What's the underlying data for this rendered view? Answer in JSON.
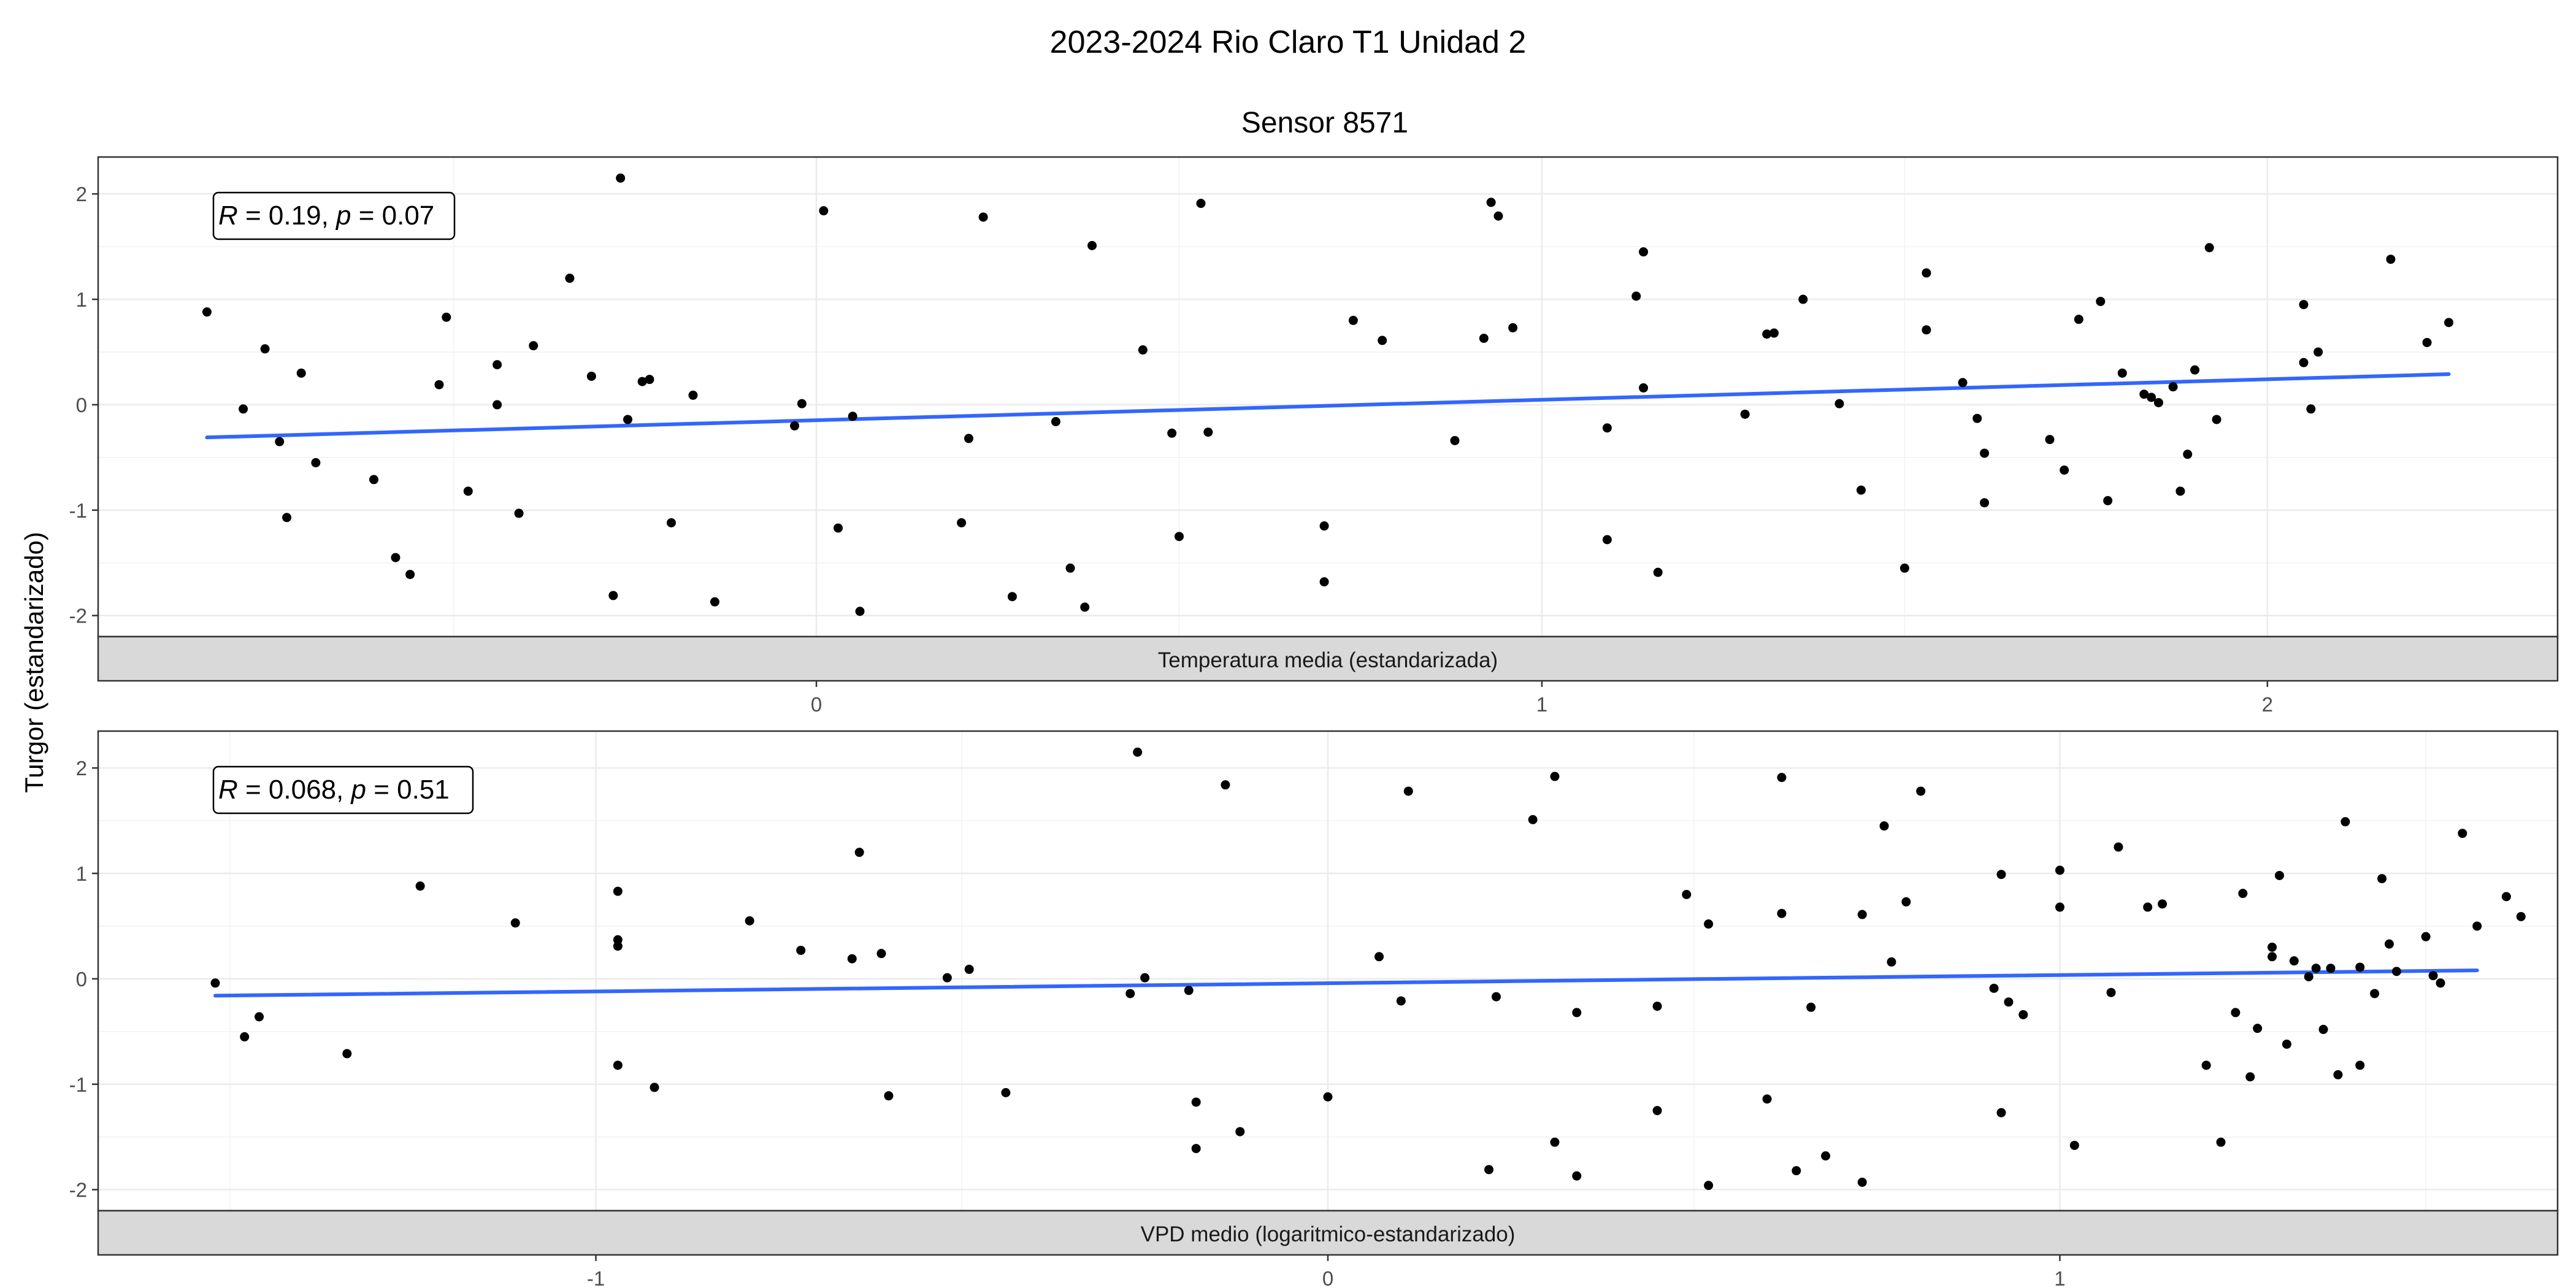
{
  "figure": {
    "title": "2023-2024 Rio Claro T1 Unidad 2",
    "subtitle": "Sensor 8571",
    "ylabel": "Turgor (estandarizado)"
  },
  "chart_data": [
    {
      "type": "scatter",
      "xlabel": "Temperatura media (estandarizada)",
      "ylabel": "Turgor (estandarizado)",
      "xlim": [
        -0.99,
        2.4
      ],
      "ylim": [
        -2.2,
        2.35
      ],
      "xticks": [
        {
          "value": 0,
          "label": "0"
        },
        {
          "value": 1,
          "label": "1"
        },
        {
          "value": 2,
          "label": "2"
        }
      ],
      "yticks": [
        {
          "value": -2,
          "label": "-2"
        },
        {
          "value": -1,
          "label": "-1"
        },
        {
          "value": 0,
          "label": "0"
        },
        {
          "value": 1,
          "label": "1"
        },
        {
          "value": 2,
          "label": "2"
        }
      ],
      "grid": true,
      "annotation": {
        "r_label": "R",
        "r_value": " = 0.19, ",
        "p_label": "p",
        "p_value": " = 0.07"
      },
      "trend_line": {
        "x": [
          -0.84,
          2.25
        ],
        "y": [
          -0.31,
          0.29
        ],
        "color": "#3366FF"
      },
      "point_color": "#000000",
      "points": [
        {
          "x": -0.84,
          "y": 0.88
        },
        {
          "x": -0.79,
          "y": -0.04
        },
        {
          "x": -0.76,
          "y": 0.53
        },
        {
          "x": -0.74,
          "y": -0.35
        },
        {
          "x": -0.73,
          "y": -1.07
        },
        {
          "x": -0.71,
          "y": 0.3
        },
        {
          "x": -0.69,
          "y": -0.55
        },
        {
          "x": -0.61,
          "y": -0.71
        },
        {
          "x": -0.58,
          "y": -1.45
        },
        {
          "x": -0.56,
          "y": -1.61
        },
        {
          "x": -0.52,
          "y": 0.19
        },
        {
          "x": -0.51,
          "y": 0.83
        },
        {
          "x": -0.48,
          "y": -0.82
        },
        {
          "x": -0.44,
          "y": 0.38
        },
        {
          "x": -0.44,
          "y": 0.0
        },
        {
          "x": -0.41,
          "y": -1.03
        },
        {
          "x": -0.39,
          "y": 0.56
        },
        {
          "x": -0.34,
          "y": 1.2
        },
        {
          "x": -0.31,
          "y": 0.27
        },
        {
          "x": -0.28,
          "y": -1.81
        },
        {
          "x": -0.27,
          "y": 2.15
        },
        {
          "x": -0.26,
          "y": -0.14
        },
        {
          "x": -0.24,
          "y": 0.22
        },
        {
          "x": -0.23,
          "y": 0.24
        },
        {
          "x": -0.2,
          "y": -1.12
        },
        {
          "x": -0.17,
          "y": 0.09
        },
        {
          "x": -0.14,
          "y": -1.87
        },
        {
          "x": -0.03,
          "y": -0.2
        },
        {
          "x": -0.02,
          "y": 0.01
        },
        {
          "x": 0.01,
          "y": 1.84
        },
        {
          "x": 0.03,
          "y": -1.17
        },
        {
          "x": 0.05,
          "y": -0.11
        },
        {
          "x": 0.06,
          "y": -1.96
        },
        {
          "x": 0.2,
          "y": -1.12
        },
        {
          "x": 0.21,
          "y": -0.32
        },
        {
          "x": 0.23,
          "y": 1.78
        },
        {
          "x": 0.27,
          "y": -1.82
        },
        {
          "x": 0.33,
          "y": -0.16
        },
        {
          "x": 0.35,
          "y": -1.55
        },
        {
          "x": 0.37,
          "y": -1.92
        },
        {
          "x": 0.38,
          "y": 1.51
        },
        {
          "x": 0.45,
          "y": 0.52
        },
        {
          "x": 0.49,
          "y": -0.27
        },
        {
          "x": 0.5,
          "y": -1.25
        },
        {
          "x": 0.53,
          "y": 1.91
        },
        {
          "x": 0.54,
          "y": -0.26
        },
        {
          "x": 0.7,
          "y": -1.15
        },
        {
          "x": 0.7,
          "y": -1.68
        },
        {
          "x": 0.74,
          "y": 0.8
        },
        {
          "x": 0.78,
          "y": 0.61
        },
        {
          "x": 0.88,
          "y": -0.34
        },
        {
          "x": 0.92,
          "y": 0.63
        },
        {
          "x": 0.93,
          "y": 1.92
        },
        {
          "x": 0.94,
          "y": 1.79
        },
        {
          "x": 0.96,
          "y": 0.73
        },
        {
          "x": 1.09,
          "y": -1.28
        },
        {
          "x": 1.09,
          "y": -0.22
        },
        {
          "x": 1.13,
          "y": 1.03
        },
        {
          "x": 1.14,
          "y": 1.45
        },
        {
          "x": 1.14,
          "y": 0.16
        },
        {
          "x": 1.16,
          "y": -1.59
        },
        {
          "x": 1.28,
          "y": -0.09
        },
        {
          "x": 1.31,
          "y": 0.67
        },
        {
          "x": 1.32,
          "y": 0.68
        },
        {
          "x": 1.36,
          "y": 1.0
        },
        {
          "x": 1.41,
          "y": 0.01
        },
        {
          "x": 1.44,
          "y": -0.81
        },
        {
          "x": 1.5,
          "y": -1.55
        },
        {
          "x": 1.53,
          "y": 1.25
        },
        {
          "x": 1.53,
          "y": 0.71
        },
        {
          "x": 1.58,
          "y": 0.21
        },
        {
          "x": 1.6,
          "y": -0.13
        },
        {
          "x": 1.61,
          "y": -0.46
        },
        {
          "x": 1.61,
          "y": -0.93
        },
        {
          "x": 1.7,
          "y": -0.33
        },
        {
          "x": 1.72,
          "y": -0.62
        },
        {
          "x": 1.74,
          "y": 0.81
        },
        {
          "x": 1.77,
          "y": 0.98
        },
        {
          "x": 1.78,
          "y": -0.91
        },
        {
          "x": 1.8,
          "y": 0.3
        },
        {
          "x": 1.83,
          "y": 0.1
        },
        {
          "x": 1.84,
          "y": 0.07
        },
        {
          "x": 1.85,
          "y": 0.02
        },
        {
          "x": 1.87,
          "y": 0.17
        },
        {
          "x": 1.88,
          "y": -0.82
        },
        {
          "x": 1.89,
          "y": -0.47
        },
        {
          "x": 1.9,
          "y": 0.33
        },
        {
          "x": 1.92,
          "y": 1.49
        },
        {
          "x": 1.93,
          "y": -0.14
        },
        {
          "x": 2.05,
          "y": 0.95
        },
        {
          "x": 2.05,
          "y": 0.4
        },
        {
          "x": 2.06,
          "y": -0.04
        },
        {
          "x": 2.07,
          "y": 0.5
        },
        {
          "x": 2.17,
          "y": 1.38
        },
        {
          "x": 2.22,
          "y": 0.59
        },
        {
          "x": 2.25,
          "y": 0.78
        }
      ]
    },
    {
      "type": "scatter",
      "xlabel": "VPD medio (logaritmico-estandarizado)",
      "ylabel": "Turgor (estandarizado)",
      "xlim": [
        -1.68,
        1.68
      ],
      "ylim": [
        -2.2,
        2.35
      ],
      "xticks": [
        {
          "value": -1,
          "label": "-1"
        },
        {
          "value": 0,
          "label": "0"
        },
        {
          "value": 1,
          "label": "1"
        }
      ],
      "yticks": [
        {
          "value": -2,
          "label": "-2"
        },
        {
          "value": -1,
          "label": "-1"
        },
        {
          "value": 0,
          "label": "0"
        },
        {
          "value": 1,
          "label": "1"
        },
        {
          "value": 2,
          "label": "2"
        }
      ],
      "grid": true,
      "annotation": {
        "r_label": "R",
        "r_value": " = 0.068, ",
        "p_label": "p",
        "p_value": " = 0.51"
      },
      "trend_line": {
        "x": [
          -1.52,
          1.57
        ],
        "y": [
          -0.16,
          0.08
        ],
        "color": "#3366FF"
      },
      "point_color": "#000000",
      "points": [
        {
          "x": -1.52,
          "y": -0.04
        },
        {
          "x": -1.48,
          "y": -0.55
        },
        {
          "x": -1.46,
          "y": -0.36
        },
        {
          "x": -1.34,
          "y": -0.71
        },
        {
          "x": -1.24,
          "y": 0.88
        },
        {
          "x": -1.11,
          "y": 0.53
        },
        {
          "x": -0.97,
          "y": 0.83
        },
        {
          "x": -0.97,
          "y": 0.37
        },
        {
          "x": -0.97,
          "y": 0.31
        },
        {
          "x": -0.97,
          "y": -0.82
        },
        {
          "x": -0.92,
          "y": -1.03
        },
        {
          "x": -0.79,
          "y": 0.55
        },
        {
          "x": -0.72,
          "y": 0.27
        },
        {
          "x": -0.65,
          "y": 0.19
        },
        {
          "x": -0.64,
          "y": 1.2
        },
        {
          "x": -0.61,
          "y": 0.24
        },
        {
          "x": -0.6,
          "y": -1.11
        },
        {
          "x": -0.52,
          "y": 0.01
        },
        {
          "x": -0.49,
          "y": 0.09
        },
        {
          "x": -0.44,
          "y": -1.08
        },
        {
          "x": -0.27,
          "y": -0.14
        },
        {
          "x": -0.26,
          "y": 2.15
        },
        {
          "x": -0.25,
          "y": 0.01
        },
        {
          "x": -0.19,
          "y": -0.11
        },
        {
          "x": -0.18,
          "y": -1.17
        },
        {
          "x": -0.18,
          "y": -1.61
        },
        {
          "x": -0.14,
          "y": 1.84
        },
        {
          "x": -0.12,
          "y": -1.45
        },
        {
          "x": 0.0,
          "y": -1.12
        },
        {
          "x": 0.07,
          "y": 0.21
        },
        {
          "x": 0.1,
          "y": -0.21
        },
        {
          "x": 0.11,
          "y": 1.78
        },
        {
          "x": 0.22,
          "y": -1.81
        },
        {
          "x": 0.23,
          "y": -0.17
        },
        {
          "x": 0.28,
          "y": 1.51
        },
        {
          "x": 0.31,
          "y": 1.92
        },
        {
          "x": 0.31,
          "y": -1.55
        },
        {
          "x": 0.34,
          "y": -0.32
        },
        {
          "x": 0.34,
          "y": -1.87
        },
        {
          "x": 0.45,
          "y": -1.25
        },
        {
          "x": 0.45,
          "y": -0.26
        },
        {
          "x": 0.49,
          "y": 0.8
        },
        {
          "x": 0.52,
          "y": 0.52
        },
        {
          "x": 0.52,
          "y": -1.96
        },
        {
          "x": 0.6,
          "y": -1.14
        },
        {
          "x": 0.62,
          "y": 1.91
        },
        {
          "x": 0.62,
          "y": 0.62
        },
        {
          "x": 0.64,
          "y": -1.82
        },
        {
          "x": 0.66,
          "y": -0.27
        },
        {
          "x": 0.68,
          "y": -1.68
        },
        {
          "x": 0.73,
          "y": -1.93
        },
        {
          "x": 0.73,
          "y": 0.61
        },
        {
          "x": 0.76,
          "y": 1.45
        },
        {
          "x": 0.77,
          "y": 0.16
        },
        {
          "x": 0.79,
          "y": 0.73
        },
        {
          "x": 0.81,
          "y": 1.78
        },
        {
          "x": 0.91,
          "y": -0.09
        },
        {
          "x": 0.92,
          "y": 0.99
        },
        {
          "x": 0.92,
          "y": -1.27
        },
        {
          "x": 0.93,
          "y": -0.22
        },
        {
          "x": 0.95,
          "y": -0.34
        },
        {
          "x": 1.0,
          "y": 1.03
        },
        {
          "x": 1.0,
          "y": 0.68
        },
        {
          "x": 1.02,
          "y": -1.58
        },
        {
          "x": 1.07,
          "y": -0.13
        },
        {
          "x": 1.08,
          "y": 1.25
        },
        {
          "x": 1.12,
          "y": 0.68
        },
        {
          "x": 1.14,
          "y": 0.71
        },
        {
          "x": 1.2,
          "y": -0.82
        },
        {
          "x": 1.22,
          "y": -1.55
        },
        {
          "x": 1.24,
          "y": -0.32
        },
        {
          "x": 1.25,
          "y": 0.81
        },
        {
          "x": 1.26,
          "y": -0.93
        },
        {
          "x": 1.27,
          "y": -0.47
        },
        {
          "x": 1.29,
          "y": 0.21
        },
        {
          "x": 1.29,
          "y": 0.3
        },
        {
          "x": 1.3,
          "y": 0.98
        },
        {
          "x": 1.31,
          "y": -0.62
        },
        {
          "x": 1.32,
          "y": 0.17
        },
        {
          "x": 1.34,
          "y": 0.02
        },
        {
          "x": 1.35,
          "y": 0.1
        },
        {
          "x": 1.36,
          "y": -0.48
        },
        {
          "x": 1.37,
          "y": 0.1
        },
        {
          "x": 1.38,
          "y": -0.91
        },
        {
          "x": 1.39,
          "y": 1.49
        },
        {
          "x": 1.41,
          "y": 0.11
        },
        {
          "x": 1.41,
          "y": -0.82
        },
        {
          "x": 1.43,
          "y": -0.14
        },
        {
          "x": 1.44,
          "y": 0.95
        },
        {
          "x": 1.45,
          "y": 0.33
        },
        {
          "x": 1.46,
          "y": 0.07
        },
        {
          "x": 1.5,
          "y": 0.4
        },
        {
          "x": 1.51,
          "y": 0.03
        },
        {
          "x": 1.52,
          "y": -0.04
        },
        {
          "x": 1.55,
          "y": 1.38
        },
        {
          "x": 1.57,
          "y": 0.5
        },
        {
          "x": 1.61,
          "y": 0.78
        },
        {
          "x": 1.63,
          "y": 0.59
        }
      ]
    }
  ]
}
